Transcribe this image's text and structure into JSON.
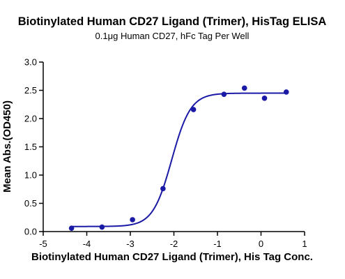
{
  "chart_data": {
    "type": "scatter",
    "title": "Biotinylated Human CD27 Ligand (Trimer), HisTag ELISA",
    "subtitle": "0.1μg Human CD27, hFc Tag Per Well",
    "xlabel": "Biotinylated Human CD27 Ligand (Trimer), His Tag Conc.",
    "ylabel": "Mean Abs.(OD450)",
    "xlim": [
      -5,
      1
    ],
    "ylim": [
      0,
      3
    ],
    "x_ticks": [
      "-5",
      "-4",
      "-3",
      "-2",
      "-1",
      "0",
      "1"
    ],
    "y_ticks": [
      "0.0",
      "0.5",
      "1.0",
      "1.5",
      "2.0",
      "2.5",
      "3.0"
    ],
    "grid": false,
    "color": "#1a1aa6",
    "points": [
      {
        "x": -4.35,
        "y": 0.06
      },
      {
        "x": -3.65,
        "y": 0.08
      },
      {
        "x": -2.95,
        "y": 0.21
      },
      {
        "x": -2.25,
        "y": 0.76
      },
      {
        "x": -1.55,
        "y": 2.16
      },
      {
        "x": -0.85,
        "y": 2.43
      },
      {
        "x": -0.38,
        "y": 2.54
      },
      {
        "x": 0.08,
        "y": 2.36
      },
      {
        "x": 0.58,
        "y": 2.47
      }
    ],
    "fit": {
      "bottom": 0.09,
      "top": 2.45,
      "logEC50": -2.05,
      "hill": 2.0,
      "x_range": [
        -4.35,
        0.58
      ]
    }
  }
}
